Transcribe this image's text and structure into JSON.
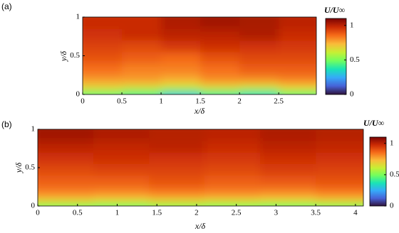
{
  "chart_data": [
    {
      "type": "heatmap",
      "label": "(a)",
      "xlabel": "x/δ",
      "ylabel": "y/δ",
      "colorbar_label": "U/U∞",
      "xlim": [
        0,
        2.98
      ],
      "xticks": [
        0,
        0.5,
        1,
        1.5,
        2,
        2.5
      ],
      "ylim": [
        0,
        1
      ],
      "yticks": [
        0,
        0.5,
        1
      ],
      "clim": [
        0,
        1.1
      ],
      "cticks": [
        0,
        0.5,
        1
      ],
      "colormap": [
        "#30123b",
        "#4662d7",
        "#36aaf9",
        "#1ae4b6",
        "#72fe5e",
        "#c8ef34",
        "#faba39",
        "#f66b19",
        "#ca2a04",
        "#7a0403"
      ],
      "x_bins": [
        0,
        0.5,
        1,
        1.5,
        2,
        2.5,
        2.98
      ],
      "y_bins": [
        0,
        0.03,
        0.08,
        0.15,
        0.25,
        0.4,
        0.55,
        0.7,
        0.85,
        1
      ],
      "z": [
        [
          0.45,
          0.42,
          0.3,
          0.4,
          0.35,
          0.45
        ],
        [
          0.6,
          0.55,
          0.5,
          0.55,
          0.5,
          0.6
        ],
        [
          0.7,
          0.68,
          0.65,
          0.7,
          0.68,
          0.72
        ],
        [
          0.78,
          0.78,
          0.75,
          0.8,
          0.8,
          0.82
        ],
        [
          0.85,
          0.82,
          0.82,
          0.85,
          0.88,
          0.88
        ],
        [
          0.9,
          0.88,
          0.86,
          0.9,
          0.92,
          0.92
        ],
        [
          0.93,
          0.92,
          0.95,
          0.97,
          0.96,
          0.95
        ],
        [
          0.96,
          0.98,
          1.0,
          1.0,
          1.02,
          0.98
        ],
        [
          0.98,
          0.98,
          1.02,
          1.04,
          1.03,
          1.0
        ]
      ]
    },
    {
      "type": "heatmap",
      "label": "(b)",
      "xlabel": "x/δ",
      "ylabel": "y/δ",
      "colorbar_label": "U/U∞",
      "xlim": [
        0,
        4.1
      ],
      "xticks": [
        0,
        0.5,
        1,
        1.5,
        2,
        2.5,
        3,
        3.5,
        4
      ],
      "ylim": [
        0,
        1
      ],
      "yticks": [
        0,
        0.5,
        1
      ],
      "clim": [
        0,
        1.1
      ],
      "cticks": [
        0,
        0.5,
        1
      ],
      "colormap": [
        "#30123b",
        "#4662d7",
        "#36aaf9",
        "#1ae4b6",
        "#72fe5e",
        "#c8ef34",
        "#faba39",
        "#f66b19",
        "#ca2a04",
        "#7a0403"
      ],
      "x_bins": [
        0,
        0.7,
        1.4,
        2.1,
        2.8,
        3.5,
        4.1
      ],
      "y_bins": [
        0,
        0.03,
        0.08,
        0.15,
        0.25,
        0.4,
        0.55,
        0.7,
        0.85,
        1
      ],
      "z": [
        [
          0.5,
          0.48,
          0.52,
          0.5,
          0.48,
          0.5
        ],
        [
          0.65,
          0.62,
          0.65,
          0.63,
          0.62,
          0.66
        ],
        [
          0.75,
          0.74,
          0.76,
          0.75,
          0.74,
          0.76
        ],
        [
          0.83,
          0.82,
          0.84,
          0.83,
          0.82,
          0.84
        ],
        [
          0.88,
          0.88,
          0.9,
          0.88,
          0.89,
          0.9
        ],
        [
          0.92,
          0.93,
          0.93,
          0.92,
          0.94,
          0.93
        ],
        [
          0.96,
          0.97,
          0.96,
          0.95,
          0.97,
          0.96
        ],
        [
          1.0,
          0.99,
          1.0,
          0.98,
          1.0,
          0.99
        ],
        [
          1.04,
          1.02,
          1.01,
          1.0,
          1.02,
          1.01
        ]
      ]
    }
  ]
}
